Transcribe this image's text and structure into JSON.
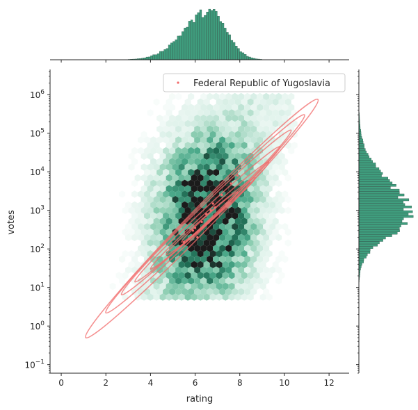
{
  "chart_data": {
    "type": "scatter",
    "subtype": "jointplot-hexbin-with-kde-contours",
    "title": "",
    "xlabel": "rating",
    "ylabel": "votes",
    "xlim": [
      -0.5,
      12.9
    ],
    "xticks": [
      0,
      2,
      4,
      6,
      8,
      10,
      12
    ],
    "yscale": "log",
    "ylim": [
      0.06,
      4500000
    ],
    "yticks": [
      {
        "value": 0.1,
        "base": "10",
        "exp": "−1"
      },
      {
        "value": 1,
        "base": "10",
        "exp": "0"
      },
      {
        "value": 10,
        "base": "10",
        "exp": "1"
      },
      {
        "value": 100,
        "base": "10",
        "exp": "2"
      },
      {
        "value": 1000,
        "base": "10",
        "exp": "3"
      },
      {
        "value": 10000,
        "base": "10",
        "exp": "4"
      },
      {
        "value": 100000,
        "base": "10",
        "exp": "5"
      },
      {
        "value": 1000000,
        "base": "10",
        "exp": "6"
      }
    ],
    "legend": {
      "position": "top-right",
      "entries": [
        {
          "label": "Federal Republic of Yugoslavia",
          "color": "#f26b6b",
          "marker": "point"
        }
      ]
    },
    "hexbin": {
      "colormap": [
        "#ffffff",
        "#d8efe6",
        "#90cfb4",
        "#4aa889",
        "#1f6b53",
        "#1b1b1b"
      ],
      "center": {
        "rating": 6.5,
        "votes": 700
      },
      "rating_range": [
        0.5,
        10.5
      ],
      "votes_range": [
        5,
        1000000
      ]
    },
    "kde_contours": {
      "color": "#f26b6b",
      "levels": [
        {
          "center": [
            6.3,
            80
          ],
          "end_low": [
            1.1,
            0.5
          ],
          "end_high": [
            11.5,
            750000
          ]
        },
        {
          "center": [
            6.4,
            150
          ],
          "end_low": [
            2.0,
            2.2
          ],
          "end_high": [
            10.9,
            300000
          ]
        },
        {
          "center": [
            6.5,
            220
          ],
          "end_low": [
            2.7,
            6.5
          ],
          "end_high": [
            10.3,
            120000
          ]
        },
        {
          "center": [
            6.5,
            320
          ],
          "end_low": [
            3.3,
            14
          ],
          "end_high": [
            9.8,
            45000
          ]
        },
        {
          "center": [
            6.6,
            480
          ],
          "end_low": [
            4.0,
            30
          ],
          "end_high": [
            9.3,
            18000
          ]
        },
        {
          "center": [
            6.6,
            700
          ],
          "end_low": [
            4.7,
            70
          ],
          "end_high": [
            8.7,
            7000
          ]
        },
        {
          "center": [
            6.6,
            800
          ],
          "end_low": [
            5.4,
            150
          ],
          "end_high": [
            7.9,
            3000
          ]
        }
      ]
    },
    "scatter_points": [
      {
        "rating": 6.3,
        "votes": 500
      },
      {
        "rating": 6.5,
        "votes": 800
      },
      {
        "rating": 6.8,
        "votes": 1500
      },
      {
        "rating": 7.2,
        "votes": 2500
      },
      {
        "rating": 5.9,
        "votes": 300
      },
      {
        "rating": 6.1,
        "votes": 200
      },
      {
        "rating": 7.6,
        "votes": 5000
      },
      {
        "rating": 6.7,
        "votes": 1000
      },
      {
        "rating": 6.0,
        "votes": 350
      },
      {
        "rating": 7.9,
        "votes": 8000
      },
      {
        "rating": 5.5,
        "votes": 150
      },
      {
        "rating": 6.9,
        "votes": 1200
      }
    ],
    "marginal_x": {
      "bin_width": 0.1,
      "range": [
        1.0,
        10.3
      ],
      "mode": 6.6,
      "color": "#3f9e7e"
    },
    "marginal_y": {
      "range_log10": [
        0.7,
        6.1
      ],
      "mode_log10": 2.85,
      "color": "#3f9e7e"
    }
  }
}
